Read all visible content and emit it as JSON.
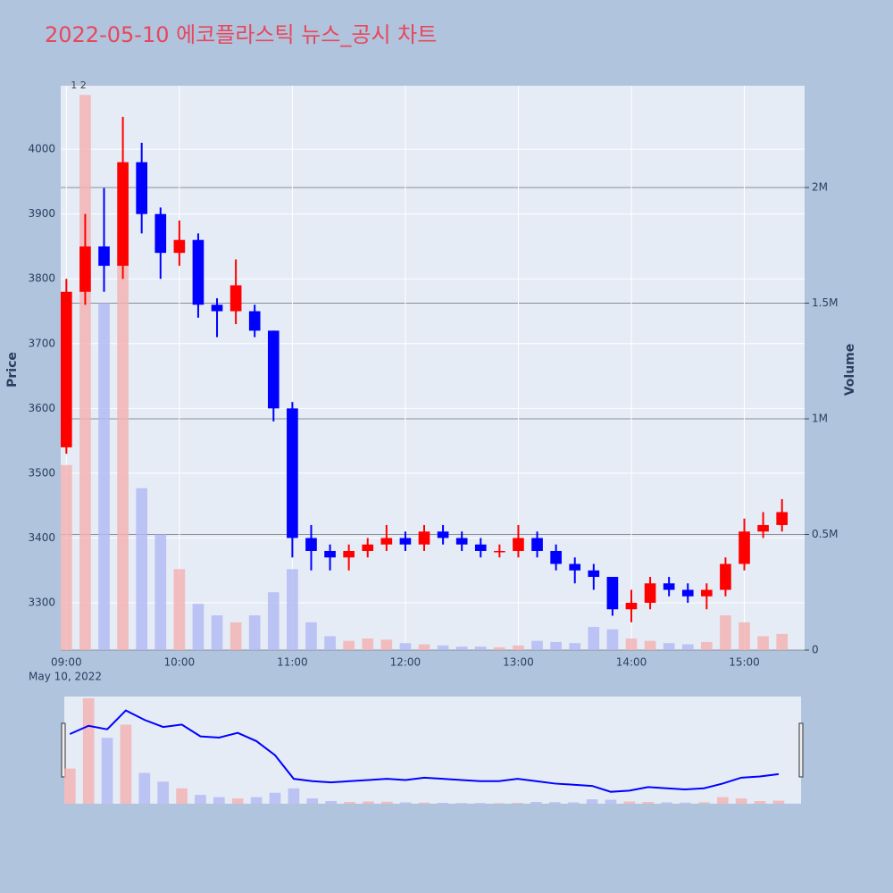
{
  "chart_data": {
    "type": "candlestick",
    "title": "2022-05-10 에코플라스틱 뉴스_공시 차트",
    "x_date_label": "May 10, 2022",
    "y_title": "Price",
    "y2_title": "Volume",
    "x": [
      "09:00",
      "09:10",
      "09:20",
      "09:30",
      "09:40",
      "09:50",
      "10:00",
      "10:10",
      "10:20",
      "10:30",
      "10:40",
      "10:50",
      "11:00",
      "11:10",
      "11:20",
      "11:30",
      "11:40",
      "11:50",
      "12:00",
      "12:10",
      "12:20",
      "12:30",
      "12:40",
      "12:50",
      "13:00",
      "13:10",
      "13:20",
      "13:30",
      "13:40",
      "13:50",
      "14:00",
      "14:10",
      "14:20",
      "14:30",
      "14:40",
      "14:50",
      "15:00",
      "15:10",
      "15:20"
    ],
    "open": [
      3540,
      3780,
      3850,
      3820,
      3980,
      3900,
      3840,
      3860,
      3760,
      3750,
      3750,
      3720,
      3600,
      3400,
      3380,
      3370,
      3380,
      3390,
      3400,
      3390,
      3410,
      3400,
      3390,
      3380,
      3380,
      3400,
      3380,
      3360,
      3350,
      3340,
      3290,
      3300,
      3330,
      3320,
      3310,
      3320,
      3360,
      3410,
      3420
    ],
    "high": [
      3800,
      3900,
      3940,
      4050,
      4010,
      3910,
      3890,
      3870,
      3770,
      3830,
      3760,
      3720,
      3610,
      3420,
      3390,
      3390,
      3400,
      3420,
      3410,
      3420,
      3420,
      3410,
      3400,
      3390,
      3420,
      3410,
      3390,
      3370,
      3360,
      3340,
      3320,
      3340,
      3340,
      3330,
      3330,
      3370,
      3430,
      3440,
      3460
    ],
    "low": [
      3530,
      3760,
      3780,
      3800,
      3870,
      3800,
      3820,
      3740,
      3710,
      3730,
      3710,
      3580,
      3370,
      3350,
      3350,
      3350,
      3370,
      3380,
      3380,
      3380,
      3390,
      3380,
      3370,
      3370,
      3370,
      3370,
      3350,
      3330,
      3320,
      3280,
      3270,
      3290,
      3310,
      3300,
      3290,
      3310,
      3350,
      3400,
      3410
    ],
    "close": [
      3780,
      3850,
      3820,
      3980,
      3900,
      3840,
      3860,
      3760,
      3750,
      3790,
      3720,
      3600,
      3400,
      3380,
      3370,
      3380,
      3390,
      3400,
      3390,
      3410,
      3400,
      3390,
      3380,
      3380,
      3400,
      3380,
      3360,
      3350,
      3340,
      3290,
      3300,
      3330,
      3320,
      3310,
      3320,
      3360,
      3410,
      3420,
      3440
    ],
    "volume": [
      800000,
      2400000,
      1500000,
      1800000,
      700000,
      500000,
      350000,
      200000,
      150000,
      120000,
      150000,
      250000,
      350000,
      120000,
      60000,
      40000,
      50000,
      45000,
      30000,
      25000,
      20000,
      15000,
      15000,
      12000,
      20000,
      40000,
      35000,
      30000,
      100000,
      90000,
      50000,
      40000,
      30000,
      25000,
      35000,
      150000,
      120000,
      60000,
      70000
    ],
    "colors": {
      "up": "#ff0000",
      "down": "#0000ff",
      "up_volume": "#f4b0b0",
      "down_volume": "#b0b8f4"
    },
    "annotations": [
      {
        "x": "09:04",
        "text": "1"
      },
      {
        "x": "09:09",
        "text": "2"
      }
    ],
    "xlim": [
      "08:57",
      "15:32"
    ],
    "xticks": [
      "09:00",
      "10:00",
      "11:00",
      "12:00",
      "13:00",
      "14:00",
      "15:00"
    ],
    "ylim": [
      3227,
      4098
    ],
    "yticks": [
      3300,
      3400,
      3500,
      3600,
      3700,
      3800,
      3900,
      4000
    ],
    "y2lim": [
      0,
      2440000
    ],
    "y2ticks": [
      {
        "value": 0,
        "label": "0"
      },
      {
        "value": 500000,
        "label": "0.5M"
      },
      {
        "value": 1000000,
        "label": "1M"
      },
      {
        "value": 1500000,
        "label": "1.5M"
      },
      {
        "value": 2000000,
        "label": "2M"
      }
    ],
    "grid": true
  }
}
